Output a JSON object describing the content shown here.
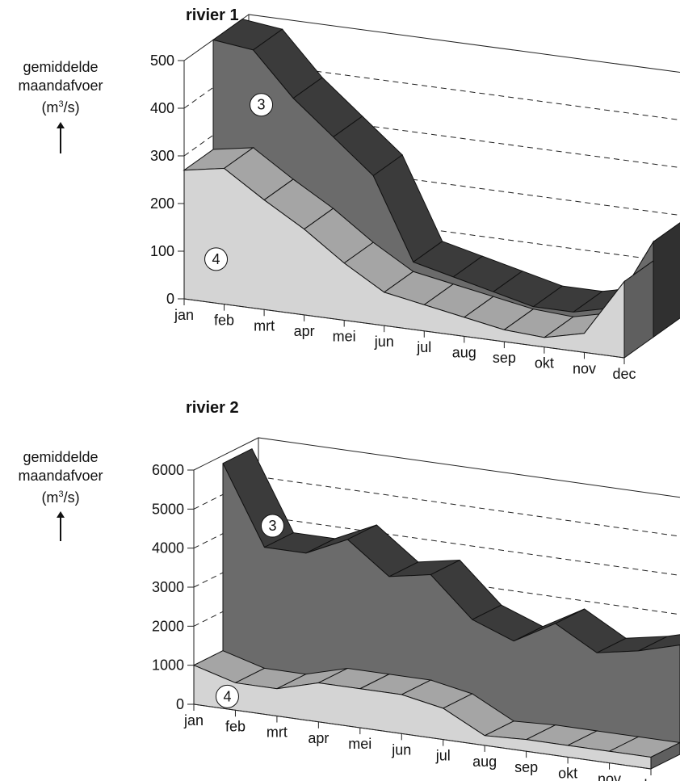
{
  "chart_data": [
    {
      "type": "area",
      "title": "rivier 1",
      "ylabel": {
        "line1": "gemiddelde",
        "line2": "maandafvoer",
        "unit_base": "(m",
        "unit_sup": "3",
        "unit_rest": "/s)"
      },
      "ylim": [
        0,
        500
      ],
      "yticks": [
        "0",
        "100",
        "200",
        "300",
        "400",
        "500"
      ],
      "categories": [
        "jan",
        "feb",
        "mrt",
        "apr",
        "mei",
        "jun",
        "jul",
        "aug",
        "sep",
        "okt",
        "nov",
        "dec"
      ],
      "grid": "dashed",
      "series": [
        {
          "name": "3",
          "values": [
            500,
            490,
            400,
            330,
            260,
            90,
            70,
            50,
            30,
            30,
            50,
            200
          ],
          "color": "#6b6b6b"
        },
        {
          "name": "4",
          "values": [
            270,
            285,
            230,
            180,
            120,
            70,
            55,
            40,
            25,
            20,
            40,
            160
          ],
          "color": "#d4d4d4"
        }
      ]
    },
    {
      "type": "area",
      "title": "rivier 2",
      "ylabel": {
        "line1": "gemiddelde",
        "line2": "maandafvoer",
        "unit_base": "(m",
        "unit_sup": "3",
        "unit_rest": "/s)"
      },
      "ylim": [
        0,
        6000
      ],
      "yticks": [
        "0",
        "1000",
        "2000",
        "3000",
        "4000",
        "5000",
        "6000"
      ],
      "categories": [
        "jan",
        "feb",
        "mrt",
        "apr",
        "mei",
        "jun",
        "jul",
        "aug",
        "sep",
        "okt",
        "nov",
        "dec"
      ],
      "grid": "dashed",
      "series": [
        {
          "name": "3",
          "values": [
            5800,
            3800,
            3800,
            4300,
            3500,
            3700,
            2700,
            2300,
            2900,
            2300,
            2500,
            2800
          ],
          "color": "#6b6b6b"
        },
        {
          "name": "4",
          "values": [
            1000,
            700,
            700,
            1000,
            1000,
            1000,
            800,
            250,
            300,
            300,
            300,
            300
          ],
          "color": "#d4d4d4"
        }
      ]
    }
  ]
}
